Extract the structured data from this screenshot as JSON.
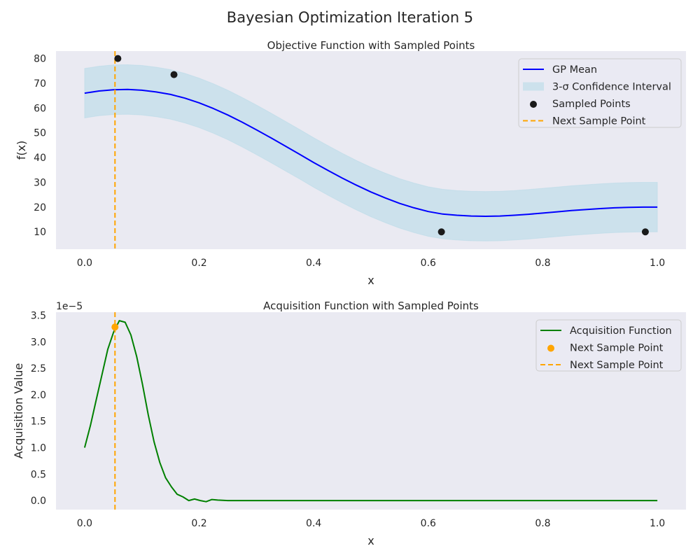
{
  "figure": {
    "suptitle": "Bayesian Optimization Iteration 5"
  },
  "chart_data": [
    {
      "type": "line",
      "title": "Objective Function with Sampled Points",
      "xlabel": "x",
      "ylabel": "f(x)",
      "xlim": [
        -0.05,
        1.05
      ],
      "ylim": [
        3,
        83
      ],
      "xticks": [
        0.0,
        0.2,
        0.4,
        0.6,
        0.8,
        1.0
      ],
      "xtick_labels": [
        "0.0",
        "0.2",
        "0.4",
        "0.6",
        "0.8",
        "1.0"
      ],
      "yticks": [
        10,
        20,
        30,
        40,
        50,
        60,
        70,
        80
      ],
      "ytick_labels": [
        "10",
        "20",
        "30",
        "40",
        "50",
        "60",
        "70",
        "80"
      ],
      "grid": false,
      "legend_position": "top-right",
      "series": [
        {
          "name": "GP Mean",
          "kind": "line",
          "color": "#0000ff",
          "x": [
            0.0,
            0.025,
            0.05,
            0.075,
            0.1,
            0.125,
            0.15,
            0.175,
            0.2,
            0.225,
            0.25,
            0.275,
            0.3,
            0.325,
            0.35,
            0.375,
            0.4,
            0.425,
            0.45,
            0.475,
            0.5,
            0.525,
            0.55,
            0.575,
            0.6,
            0.625,
            0.65,
            0.675,
            0.7,
            0.725,
            0.75,
            0.775,
            0.8,
            0.825,
            0.85,
            0.875,
            0.9,
            0.925,
            0.95,
            0.975,
            1.0
          ],
          "y": [
            66.0,
            66.9,
            67.4,
            67.5,
            67.2,
            66.5,
            65.5,
            64.0,
            62.1,
            59.8,
            57.2,
            54.3,
            51.2,
            48.0,
            44.7,
            41.4,
            38.0,
            34.8,
            31.7,
            28.8,
            26.1,
            23.7,
            21.5,
            19.7,
            18.2,
            17.2,
            16.7,
            16.4,
            16.3,
            16.4,
            16.7,
            17.1,
            17.6,
            18.1,
            18.6,
            19.0,
            19.4,
            19.7,
            19.9,
            20.0,
            20.0
          ],
          "x_note": ""
        },
        {
          "name": "3-σ Confidence Interval",
          "kind": "band",
          "color": "#add8e6",
          "x": [
            0.0,
            0.025,
            0.05,
            0.075,
            0.1,
            0.125,
            0.15,
            0.175,
            0.2,
            0.225,
            0.25,
            0.275,
            0.3,
            0.325,
            0.35,
            0.375,
            0.4,
            0.425,
            0.45,
            0.475,
            0.5,
            0.525,
            0.55,
            0.575,
            0.6,
            0.625,
            0.65,
            0.675,
            0.7,
            0.725,
            0.75,
            0.775,
            0.8,
            0.825,
            0.85,
            0.875,
            0.9,
            0.925,
            0.95,
            0.975,
            1.0
          ],
          "upper": [
            76.0,
            76.9,
            77.4,
            77.5,
            77.2,
            76.5,
            75.5,
            74.0,
            72.1,
            69.8,
            67.2,
            64.3,
            61.2,
            58.0,
            54.7,
            51.4,
            48.0,
            44.8,
            41.7,
            38.8,
            36.1,
            33.7,
            31.5,
            29.7,
            28.2,
            27.2,
            26.7,
            26.4,
            26.3,
            26.4,
            26.7,
            27.1,
            27.6,
            28.1,
            28.6,
            29.0,
            29.4,
            29.7,
            29.9,
            30.0,
            30.0
          ],
          "lower": [
            56.0,
            56.9,
            57.4,
            57.5,
            57.2,
            56.5,
            55.5,
            54.0,
            52.1,
            49.8,
            47.2,
            44.3,
            41.2,
            38.0,
            34.7,
            31.4,
            28.0,
            24.8,
            21.7,
            18.8,
            16.1,
            13.7,
            11.5,
            9.7,
            8.2,
            7.2,
            6.7,
            6.4,
            6.3,
            6.4,
            6.7,
            7.1,
            7.6,
            8.1,
            8.6,
            9.0,
            9.4,
            9.7,
            9.9,
            10.0,
            10.0
          ]
        },
        {
          "name": "Sampled Points",
          "kind": "scatter",
          "color": "#1a1a1a",
          "x": [
            0.058,
            0.156,
            0.623,
            0.979
          ],
          "y": [
            80,
            73.5,
            10,
            10
          ]
        },
        {
          "name": "Next Sample Point",
          "kind": "vline",
          "color": "#ffa500",
          "x": 0.053
        }
      ]
    },
    {
      "type": "line",
      "title": "Acquisition Function with Sampled Points",
      "xlabel": "x",
      "ylabel": "Acquisition Value",
      "scale_label": "1e−5",
      "xlim": [
        -0.05,
        1.05
      ],
      "ylim": [
        -0.17,
        3.56
      ],
      "xticks": [
        0.0,
        0.2,
        0.4,
        0.6,
        0.8,
        1.0
      ],
      "xtick_labels": [
        "0.0",
        "0.2",
        "0.4",
        "0.6",
        "0.8",
        "1.0"
      ],
      "yticks": [
        0.0,
        0.5,
        1.0,
        1.5,
        2.0,
        2.5,
        3.0,
        3.5
      ],
      "ytick_labels": [
        "0.0",
        "0.5",
        "1.0",
        "1.5",
        "2.0",
        "2.5",
        "3.0",
        "3.5"
      ],
      "grid": false,
      "legend_position": "top-right",
      "series": [
        {
          "name": "Acquisition Function",
          "kind": "line",
          "color": "#008000",
          "x": [
            0.0,
            0.0101,
            0.0202,
            0.0303,
            0.0404,
            0.0505,
            0.0606,
            0.0707,
            0.0808,
            0.0909,
            0.101,
            0.1111,
            0.1212,
            0.1313,
            0.1414,
            0.1515,
            0.1616,
            0.1717,
            0.1818,
            0.1919,
            0.202,
            0.2121,
            0.2222,
            0.2323,
            0.25,
            0.3,
            0.4,
            0.5,
            0.6,
            0.7,
            0.8,
            0.9,
            1.0
          ],
          "y": [
            1.0,
            1.42,
            1.9,
            2.38,
            2.86,
            3.18,
            3.4,
            3.37,
            3.13,
            2.72,
            2.2,
            1.62,
            1.11,
            0.72,
            0.43,
            0.26,
            0.12,
            0.07,
            0.0,
            0.03,
            0.0,
            -0.02,
            0.02,
            0.01,
            0.0,
            0.0,
            0.0,
            0.0,
            0.0,
            0.0,
            0.0,
            0.0,
            0.0
          ]
        },
        {
          "name": "Next Sample Point",
          "kind": "scatter",
          "color": "#ffa500",
          "x": [
            0.053
          ],
          "y": [
            3.28
          ]
        },
        {
          "name": "Next Sample Point",
          "kind": "vline",
          "color": "#ffa500",
          "x": 0.053
        }
      ]
    }
  ]
}
